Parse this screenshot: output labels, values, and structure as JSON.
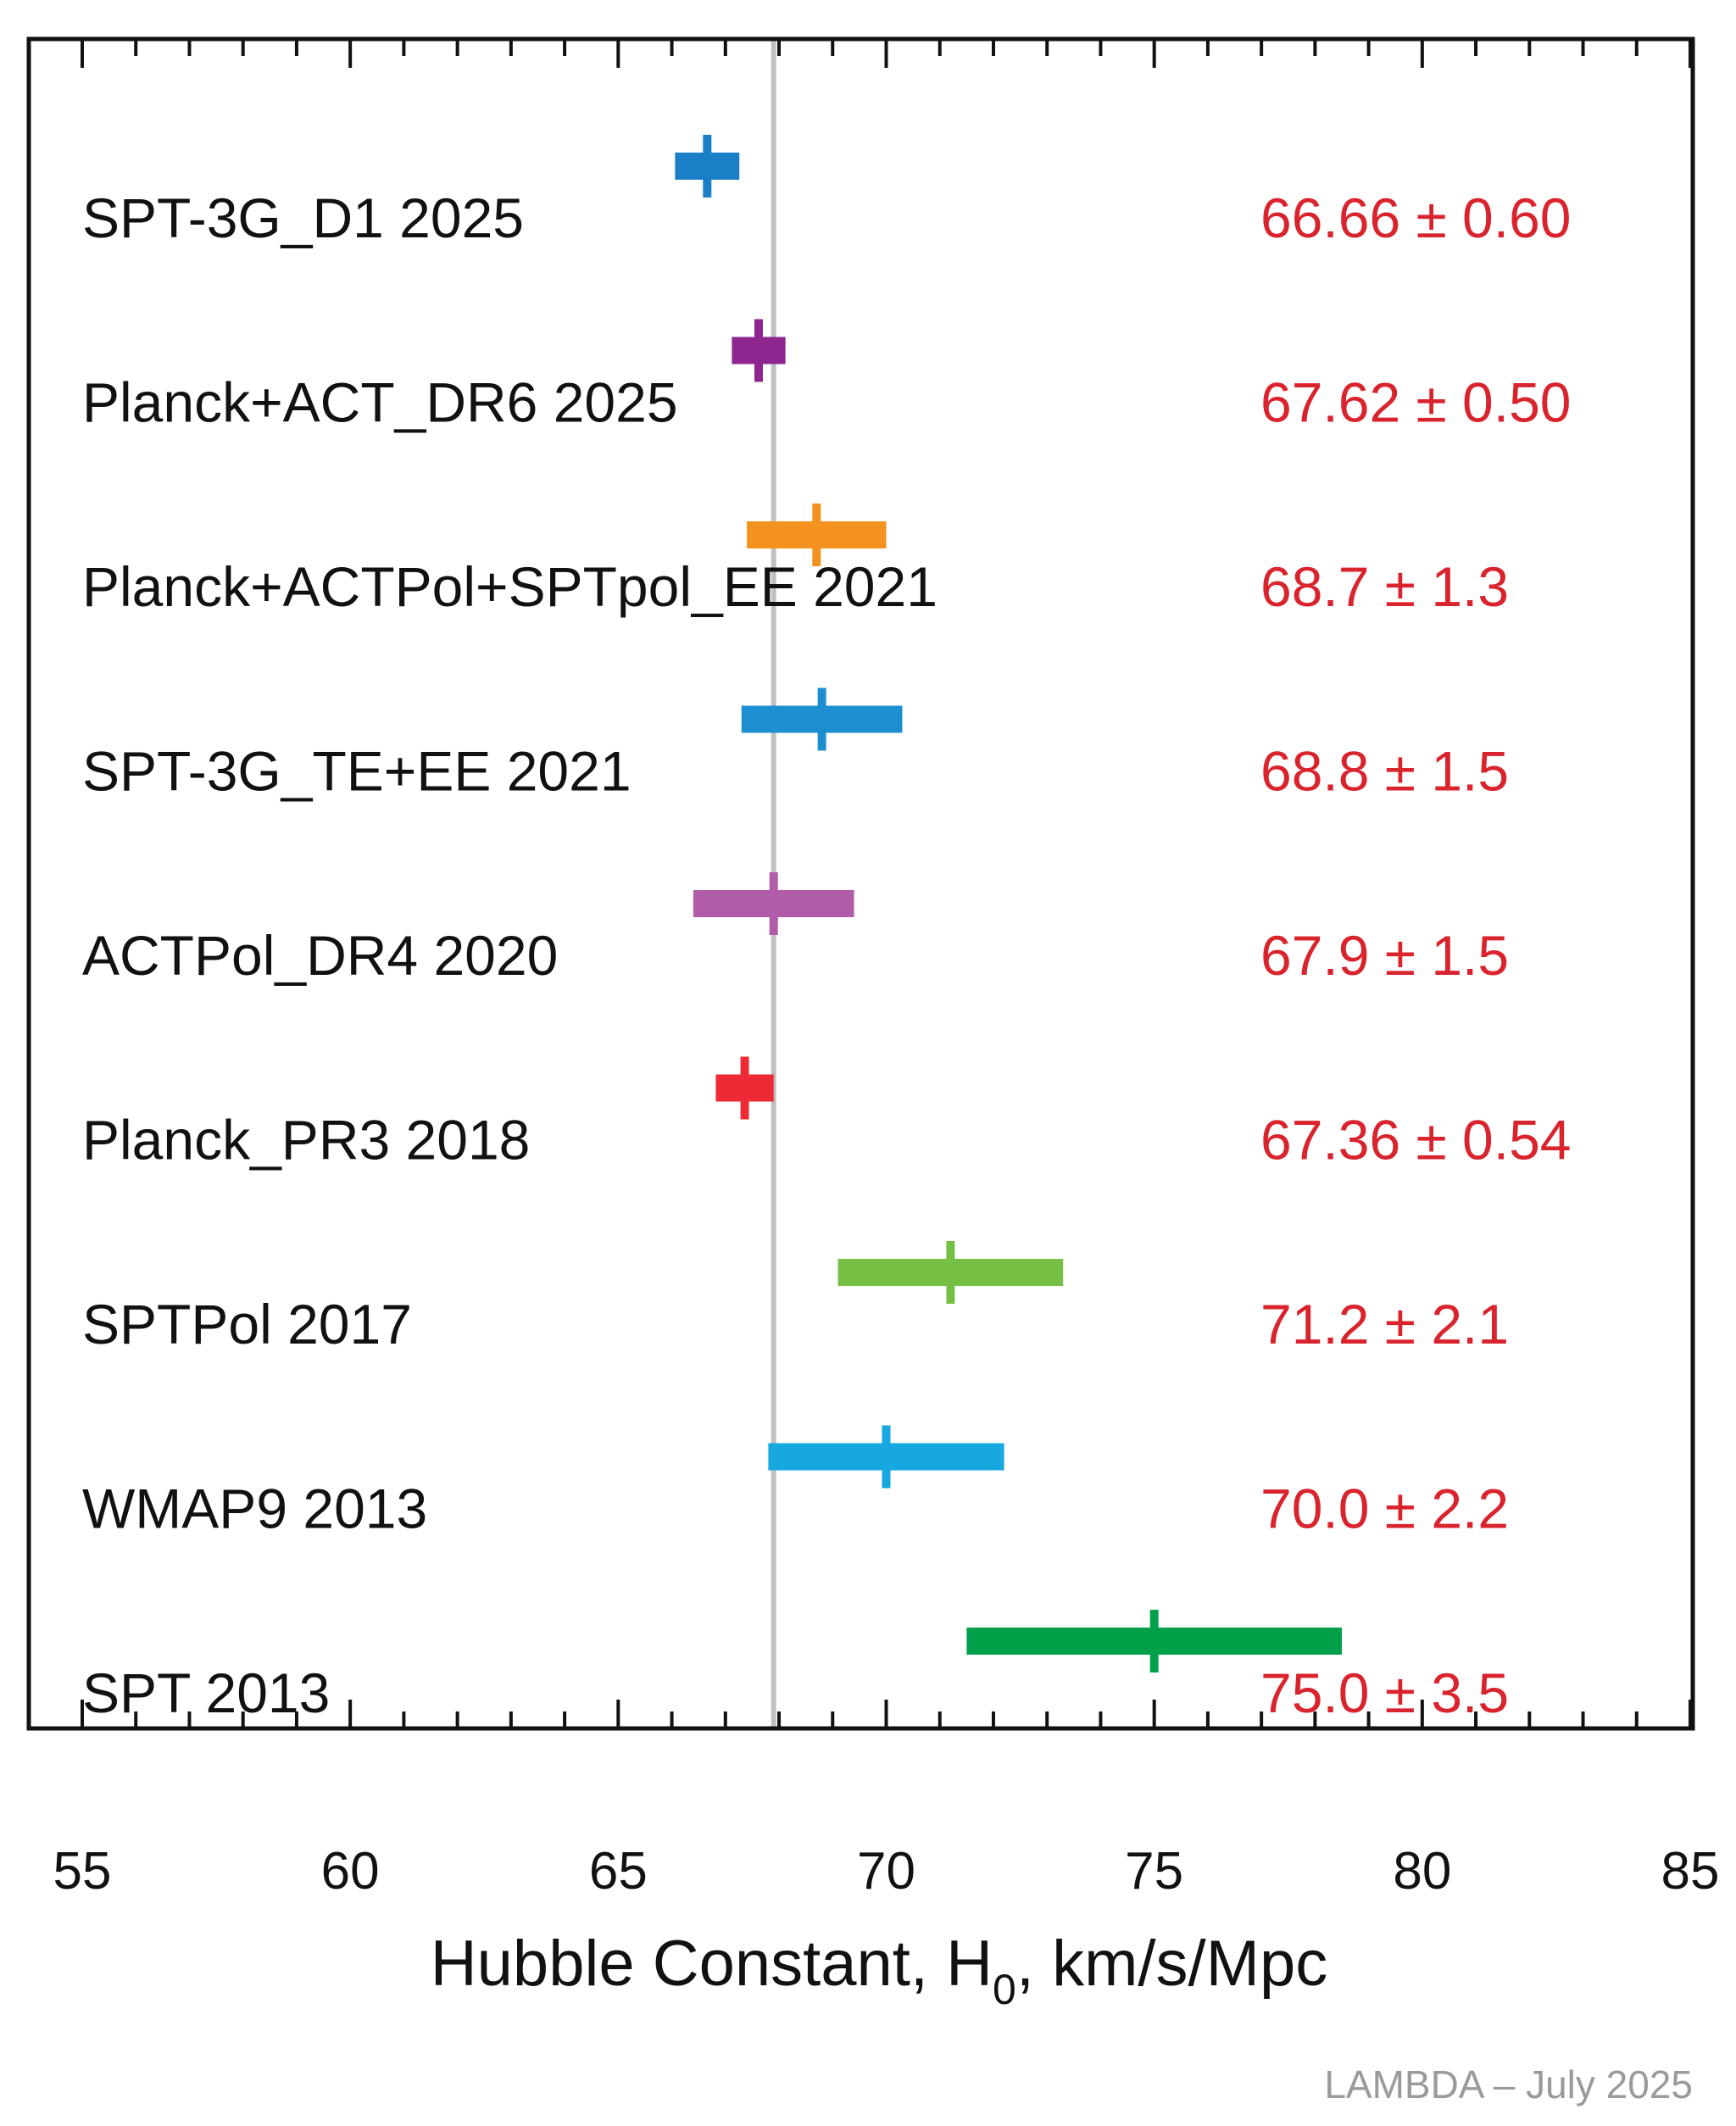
{
  "chart_data": {
    "type": "forest",
    "xlabel": "Hubble Constant, H",
    "xlabel_subscript": "0",
    "xlabel_suffix": ", km/s/Mpc",
    "xlim": [
      55,
      85
    ],
    "xticks_major": [
      55,
      60,
      65,
      70,
      75,
      80,
      85
    ],
    "minor_tick_step": 1,
    "reference_line": {
      "x": 67.9,
      "color": "#c0c0c0"
    },
    "value_color": "#d9232d",
    "rows": [
      {
        "label": "SPT-3G_D1 2025",
        "value": 66.66,
        "error": 0.6,
        "display": "66.66 ± 0.60",
        "color": "#1b7fc8"
      },
      {
        "label": "Planck+ACT_DR6 2025",
        "value": 67.62,
        "error": 0.5,
        "display": "67.62 ± 0.50",
        "color": "#8e2690"
      },
      {
        "label": "Planck+ACTPol+SPTpol_EE 2021",
        "value": 68.7,
        "error": 1.3,
        "display": "68.7 ± 1.3",
        "color": "#f3921f"
      },
      {
        "label": "SPT-3G_TE+EE 2021",
        "value": 68.8,
        "error": 1.5,
        "display": "68.8 ± 1.5",
        "color": "#1d8fd1"
      },
      {
        "label": "ACTPol_DR4 2020",
        "value": 67.9,
        "error": 1.5,
        "display": "67.9 ± 1.5",
        "color": "#b05ca8"
      },
      {
        "label": "Planck_PR3 2018",
        "value": 67.36,
        "error": 0.54,
        "display": "67.36 ± 0.54",
        "color": "#ee2a34"
      },
      {
        "label": "SPTPol 2017",
        "value": 71.2,
        "error": 2.1,
        "display": "71.2 ± 2.1",
        "color": "#74bf44"
      },
      {
        "label": "WMAP9 2013",
        "value": 70.0,
        "error": 2.2,
        "display": "70.0 ± 2.2",
        "color": "#16a8df"
      },
      {
        "label": "SPT 2013",
        "value": 75.0,
        "error": 3.5,
        "display": "75.0 ± 3.5",
        "color": "#00a04b"
      }
    ]
  },
  "credit": "LAMBDA – July 2025"
}
